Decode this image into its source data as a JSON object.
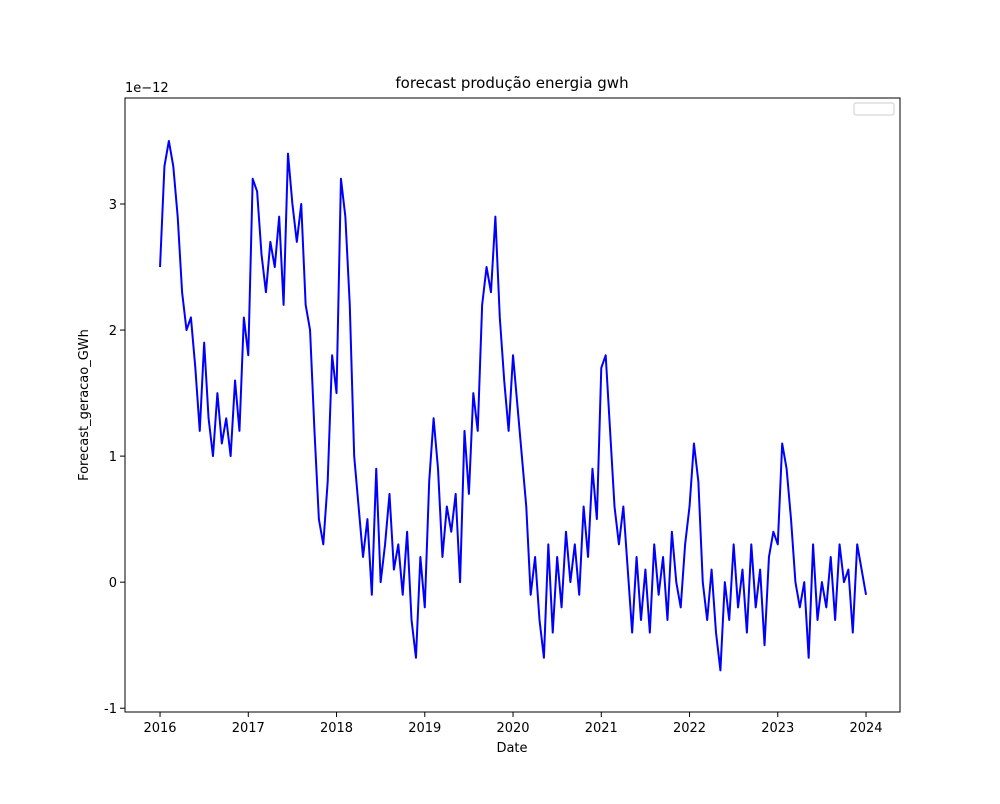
{
  "chart_data": {
    "type": "line",
    "title": "forecast produção energia gwh",
    "x_label": "Date",
    "y_label": "Forecast_geracao_GWh",
    "y_offset_label": "1e−12",
    "x": [
      2016.0,
      2016.05,
      2016.1,
      2016.15,
      2016.2,
      2016.25,
      2016.3,
      2016.35,
      2016.4,
      2016.45,
      2016.5,
      2016.55,
      2016.6,
      2016.65,
      2016.7,
      2016.75,
      2016.8,
      2016.85,
      2016.9,
      2016.95,
      2017.0,
      2017.05,
      2017.1,
      2017.15,
      2017.2,
      2017.25,
      2017.3,
      2017.35,
      2017.4,
      2017.45,
      2017.5,
      2017.55,
      2017.6,
      2017.65,
      2017.7,
      2017.75,
      2017.8,
      2017.85,
      2017.9,
      2017.95,
      2018.0,
      2018.05,
      2018.1,
      2018.15,
      2018.2,
      2018.25,
      2018.3,
      2018.35,
      2018.4,
      2018.45,
      2018.5,
      2018.55,
      2018.6,
      2018.65,
      2018.7,
      2018.75,
      2018.8,
      2018.85,
      2018.9,
      2018.95,
      2019.0,
      2019.05,
      2019.1,
      2019.15,
      2019.2,
      2019.25,
      2019.3,
      2019.35,
      2019.4,
      2019.45,
      2019.5,
      2019.55,
      2019.6,
      2019.65,
      2019.7,
      2019.75,
      2019.8,
      2019.85,
      2019.9,
      2019.95,
      2020.0,
      2020.05,
      2020.1,
      2020.15,
      2020.2,
      2020.25,
      2020.3,
      2020.35,
      2020.4,
      2020.45,
      2020.5,
      2020.55,
      2020.6,
      2020.65,
      2020.7,
      2020.75,
      2020.8,
      2020.85,
      2020.9,
      2020.95,
      2021.0,
      2021.05,
      2021.1,
      2021.15,
      2021.2,
      2021.25,
      2021.3,
      2021.35,
      2021.4,
      2021.45,
      2021.5,
      2021.55,
      2021.6,
      2021.65,
      2021.7,
      2021.75,
      2021.8,
      2021.85,
      2021.9,
      2021.95,
      2022.0,
      2022.05,
      2022.1,
      2022.15,
      2022.2,
      2022.25,
      2022.3,
      2022.35,
      2022.4,
      2022.45,
      2022.5,
      2022.55,
      2022.6,
      2022.65,
      2022.7,
      2022.75,
      2022.8,
      2022.85,
      2022.9,
      2022.95,
      2023.0,
      2023.05,
      2023.1,
      2023.15,
      2023.2,
      2023.25,
      2023.3,
      2023.35,
      2023.4,
      2023.45,
      2023.5,
      2023.55,
      2023.6,
      2023.65,
      2023.7,
      2023.75,
      2023.8,
      2023.85,
      2023.9,
      2023.95,
      2024.0
    ],
    "series": [
      {
        "color": "#0000ff",
        "values": [
          2.5,
          3.3,
          3.5,
          3.3,
          2.9,
          2.3,
          2.0,
          2.1,
          1.7,
          1.2,
          1.9,
          1.3,
          1.0,
          1.5,
          1.1,
          1.3,
          1.0,
          1.6,
          1.2,
          2.1,
          1.8,
          3.2,
          3.1,
          2.6,
          2.3,
          2.7,
          2.5,
          2.9,
          2.2,
          3.4,
          3.0,
          2.7,
          3.0,
          2.2,
          2.0,
          1.2,
          0.5,
          0.3,
          0.8,
          1.8,
          1.5,
          3.2,
          2.9,
          2.2,
          1.0,
          0.6,
          0.2,
          0.5,
          -0.1,
          0.9,
          0.0,
          0.3,
          0.7,
          0.1,
          0.3,
          -0.1,
          0.4,
          -0.3,
          -0.6,
          0.2,
          -0.2,
          0.8,
          1.3,
          0.9,
          0.2,
          0.6,
          0.4,
          0.7,
          0.0,
          1.2,
          0.7,
          1.5,
          1.2,
          2.2,
          2.5,
          2.3,
          2.9,
          2.1,
          1.6,
          1.2,
          1.8,
          1.4,
          1.0,
          0.6,
          -0.1,
          0.2,
          -0.3,
          -0.6,
          0.3,
          -0.4,
          0.2,
          -0.2,
          0.4,
          0.0,
          0.3,
          -0.1,
          0.6,
          0.2,
          0.9,
          0.5,
          1.7,
          1.8,
          1.2,
          0.6,
          0.3,
          0.6,
          0.1,
          -0.4,
          0.2,
          -0.3,
          0.1,
          -0.4,
          0.3,
          -0.1,
          0.2,
          -0.3,
          0.4,
          0.0,
          -0.2,
          0.3,
          0.6,
          1.1,
          0.8,
          0.0,
          -0.3,
          0.1,
          -0.4,
          -0.7,
          0.0,
          -0.3,
          0.3,
          -0.2,
          0.1,
          -0.4,
          0.3,
          -0.2,
          0.1,
          -0.5,
          0.2,
          0.4,
          0.3,
          1.1,
          0.9,
          0.5,
          0.0,
          -0.2,
          0.0,
          -0.6,
          0.3,
          -0.3,
          0.0,
          -0.2,
          0.2,
          -0.3,
          0.3,
          0.0,
          0.1,
          -0.4,
          0.3,
          0.1,
          -0.1
        ]
      }
    ],
    "xlim": [
      2015.603,
      2024.385
    ],
    "xticks": [
      2016,
      2017,
      2018,
      2019,
      2020,
      2021,
      2022,
      2023,
      2024
    ],
    "ylim": [
      -1.03,
      3.841
    ],
    "yticks": [
      -1,
      0,
      1,
      2,
      3
    ],
    "legend": "upper right"
  }
}
